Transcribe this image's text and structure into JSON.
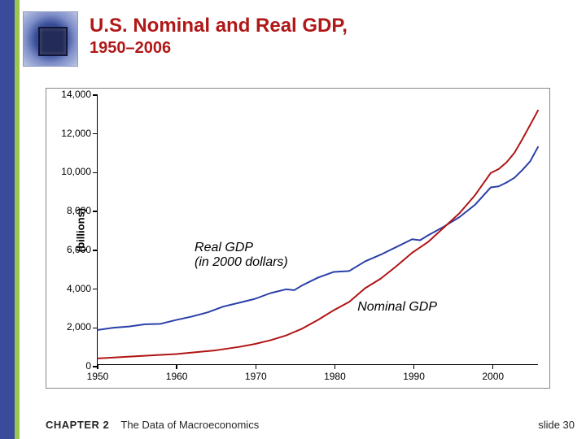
{
  "title": {
    "main": "U.S. Nominal and Real GDP,",
    "sub": "1950–2006"
  },
  "footer": {
    "chapter_label": "CHAPTER 2",
    "chapter_title": "The Data of Macroeconomics",
    "slide_label": "slide 30"
  },
  "chart": {
    "type": "line",
    "y_axis": {
      "label": "(billions)",
      "min": 0,
      "max": 14000,
      "ticks": [
        0,
        2000,
        4000,
        6000,
        8000,
        10000,
        12000,
        14000
      ],
      "tick_labels": [
        "0",
        "2,000",
        "4,000",
        "6,000",
        "8,000",
        "10,000",
        "12,000",
        "14,000"
      ]
    },
    "x_axis": {
      "min": 1950,
      "max": 2006,
      "ticks": [
        1950,
        1960,
        1970,
        1980,
        1990,
        2000
      ],
      "tick_labels": [
        "1950",
        "1960",
        "1970",
        "1980",
        "1990",
        "2000"
      ]
    },
    "series": [
      {
        "name": "Real GDP (in 2000 dollars)",
        "color": "#2a3fa8",
        "line_width": 2,
        "points": [
          [
            1950,
            1780
          ],
          [
            1952,
            1900
          ],
          [
            1954,
            1960
          ],
          [
            1956,
            2080
          ],
          [
            1958,
            2100
          ],
          [
            1960,
            2300
          ],
          [
            1962,
            2480
          ],
          [
            1964,
            2700
          ],
          [
            1966,
            3000
          ],
          [
            1968,
            3200
          ],
          [
            1970,
            3400
          ],
          [
            1972,
            3700
          ],
          [
            1974,
            3900
          ],
          [
            1975,
            3850
          ],
          [
            1976,
            4100
          ],
          [
            1978,
            4500
          ],
          [
            1980,
            4800
          ],
          [
            1982,
            4850
          ],
          [
            1984,
            5350
          ],
          [
            1986,
            5700
          ],
          [
            1988,
            6100
          ],
          [
            1990,
            6500
          ],
          [
            1991,
            6450
          ],
          [
            1992,
            6700
          ],
          [
            1994,
            7150
          ],
          [
            1996,
            7650
          ],
          [
            1998,
            8300
          ],
          [
            2000,
            9200
          ],
          [
            2001,
            9250
          ],
          [
            2002,
            9450
          ],
          [
            2003,
            9700
          ],
          [
            2004,
            10100
          ],
          [
            2005,
            10550
          ],
          [
            2006,
            11300
          ]
        ]
      },
      {
        "name": "Nominal GDP",
        "color": "#b01414",
        "line_width": 2,
        "points": [
          [
            1950,
            300
          ],
          [
            1955,
            420
          ],
          [
            1960,
            530
          ],
          [
            1965,
            720
          ],
          [
            1968,
            900
          ],
          [
            1970,
            1050
          ],
          [
            1972,
            1250
          ],
          [
            1974,
            1500
          ],
          [
            1976,
            1850
          ],
          [
            1978,
            2300
          ],
          [
            1980,
            2800
          ],
          [
            1982,
            3250
          ],
          [
            1984,
            3950
          ],
          [
            1986,
            4450
          ],
          [
            1988,
            5100
          ],
          [
            1990,
            5800
          ],
          [
            1992,
            6350
          ],
          [
            1994,
            7100
          ],
          [
            1996,
            7850
          ],
          [
            1998,
            8800
          ],
          [
            2000,
            9950
          ],
          [
            2001,
            10150
          ],
          [
            2002,
            10500
          ],
          [
            2003,
            11000
          ],
          [
            2004,
            11700
          ],
          [
            2005,
            12450
          ],
          [
            2006,
            13200
          ]
        ]
      }
    ],
    "annotations": {
      "real": {
        "text_line1": "Real GDP",
        "text_line2": "(in 2000 dollars)",
        "left_pct": 22,
        "top_pct": 54
      },
      "nominal": {
        "text": "Nominal GDP",
        "left_pct": 59,
        "top_pct": 76
      }
    },
    "tick_label_fontsize": 12,
    "axis_label_fontsize": 13,
    "background_color": "#ffffff",
    "frame_color": "#888888"
  },
  "colors": {
    "slide_rail": "#3b4b9c",
    "slide_accent": "#9ec64e",
    "title_color": "#b01818"
  }
}
